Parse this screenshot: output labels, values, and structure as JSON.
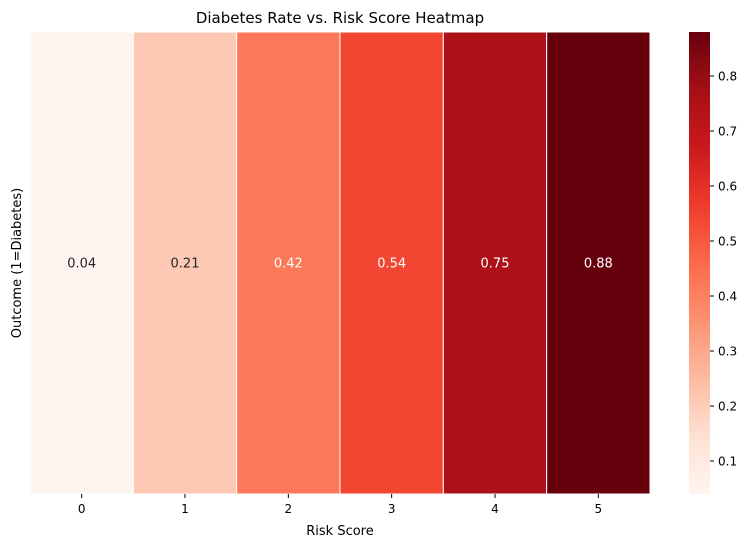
{
  "chart_data": {
    "type": "heatmap",
    "title": "Diabetes Rate vs. Risk Score Heatmap",
    "xlabel": "Risk Score",
    "ylabel": "Outcome (1=Diabetes)",
    "x_categories": [
      "0",
      "1",
      "2",
      "3",
      "4",
      "5"
    ],
    "values": [
      0.04,
      0.21,
      0.42,
      0.54,
      0.75,
      0.88
    ],
    "value_labels": [
      "0.04",
      "0.21",
      "0.42",
      "0.54",
      "0.75",
      "0.88"
    ],
    "colormap": "Reds",
    "colorbar": {
      "range": [
        0.04,
        0.88
      ],
      "ticks": [
        0.1,
        0.2,
        0.3,
        0.4,
        0.5,
        0.6,
        0.7,
        0.8
      ],
      "tick_labels": [
        "0.1",
        "0.2",
        "0.3",
        "0.4",
        "0.5",
        "0.6",
        "0.7",
        "0.8"
      ]
    },
    "grid": false
  }
}
